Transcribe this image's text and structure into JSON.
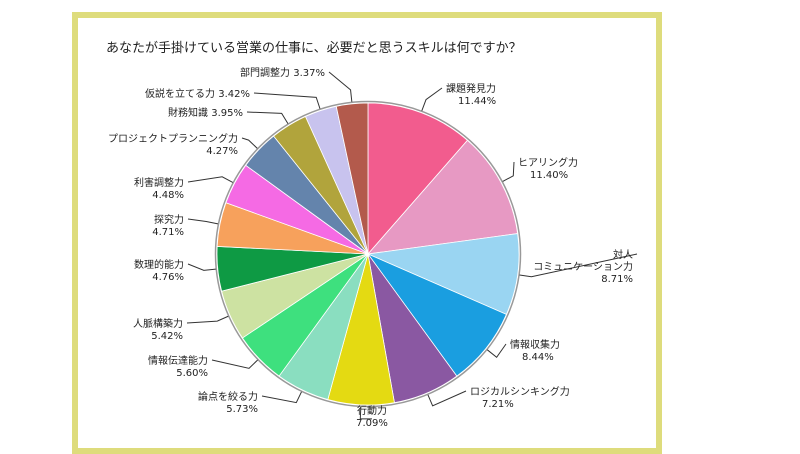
{
  "chart_data": {
    "type": "pie",
    "title": "あなたが手掛けている営業の仕事に、必要だと思うスキルは何ですか？",
    "unit": "%",
    "slices": [
      {
        "label": "課題発見力",
        "value": 11.44,
        "display": "11.44%",
        "color": "#f25c8e"
      },
      {
        "label": "ヒアリング力",
        "value": 11.4,
        "display": "11.40%",
        "color": "#e799c3"
      },
      {
        "label": "対人 コミュニケーション力",
        "lines": [
          "対人",
          "コミュニケーション力"
        ],
        "value": 8.71,
        "display": "8.71%",
        "color": "#9ad5f2"
      },
      {
        "label": "情報収集力",
        "value": 8.44,
        "display": "8.44%",
        "color": "#1a9ee0"
      },
      {
        "label": "ロジカルシンキング力",
        "value": 7.21,
        "display": "7.21%",
        "color": "#8a58a2"
      },
      {
        "label": "行動力",
        "value": 7.09,
        "display": "7.09%",
        "color": "#e4da12"
      },
      {
        "label": "論点を絞る力",
        "value": 5.73,
        "display": "5.73%",
        "color": "#8adec0"
      },
      {
        "label": "情報伝達能力",
        "value": 5.6,
        "display": "5.60%",
        "color": "#3ee07e"
      },
      {
        "label": "人脈構築力",
        "value": 5.42,
        "display": "5.42%",
        "color": "#cde2a2"
      },
      {
        "label": "数理的能力",
        "value": 4.76,
        "display": "4.76%",
        "color": "#0e9a44"
      },
      {
        "label": "探究力",
        "value": 4.71,
        "display": "4.71%",
        "color": "#f7a15c"
      },
      {
        "label": "利害調整力",
        "value": 4.48,
        "display": "4.48%",
        "color": "#f56ae4"
      },
      {
        "label": "プロジェクトプランニング力",
        "value": 4.27,
        "display": "4.27%",
        "color": "#6484ac"
      },
      {
        "label": "財務知識",
        "value": 3.95,
        "display": "3.95%",
        "color": "#b1a43c"
      },
      {
        "label": "仮説を立てる力",
        "value": 3.42,
        "display": "3.42%",
        "color": "#c8c3ee"
      },
      {
        "label": "部門調整力",
        "value": 3.37,
        "display": "3.37%",
        "color": "#b35a4c"
      }
    ],
    "frame_color": "#dedc7c"
  }
}
